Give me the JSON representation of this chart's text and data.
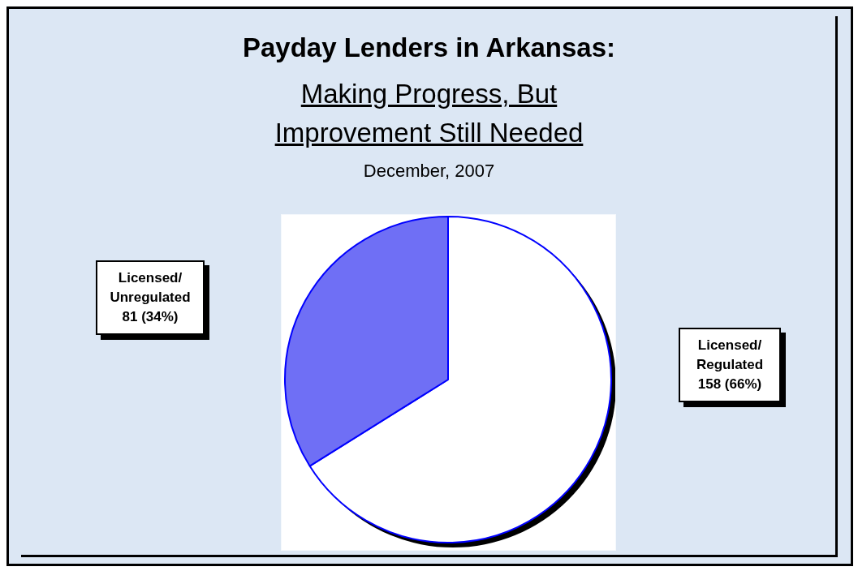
{
  "chart_data": {
    "type": "pie",
    "title": "Payday Lenders in Arkansas:",
    "subtitle": "Making Progress, But Improvement Still Needed",
    "annotations": [
      "December, 2007"
    ],
    "categories": [
      "Licensed/ Regulated",
      "Licensed/ Unregulated"
    ],
    "values": [
      158,
      81
    ],
    "colors": [
      "#ffffff",
      "#6f6ff5"
    ],
    "value_labels": [
      "158   (66%)",
      "81   (34%)"
    ],
    "legend": false
  }
}
